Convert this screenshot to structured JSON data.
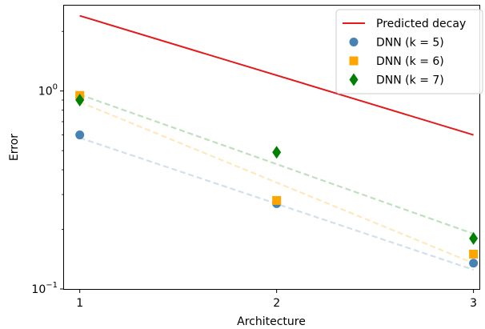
{
  "chart_data": {
    "type": "scatter",
    "title": "",
    "xlabel": "Architecture",
    "ylabel": "Error",
    "xscale": "linear",
    "yscale": "log",
    "xlim": [
      0.92,
      3.03
    ],
    "ylim": [
      0.1,
      2.7
    ],
    "grid": false,
    "legend_position": "top-right",
    "x_ticks": [
      {
        "value": 1,
        "label": "1"
      },
      {
        "value": 2,
        "label": "2"
      },
      {
        "value": 3,
        "label": "3"
      }
    ],
    "y_ticks": [
      {
        "value": 0.1,
        "base": "10",
        "exp": "−1"
      },
      {
        "value": 1,
        "base": "10",
        "exp": "0"
      }
    ],
    "series": [
      {
        "name": "Predicted decay",
        "kind": "line",
        "color": "#e31a1c",
        "x": [
          1,
          3
        ],
        "y": [
          2.4,
          0.6
        ]
      },
      {
        "name": "DNN (k = 5)",
        "kind": "marker",
        "marker": "circle",
        "color": "#4682b4",
        "x": [
          1,
          2,
          3
        ],
        "y": [
          0.6,
          0.27,
          0.135
        ],
        "fit": {
          "x": [
            1,
            3
          ],
          "y": [
            0.58,
            0.125
          ]
        }
      },
      {
        "name": "DNN (k = 6)",
        "kind": "marker",
        "marker": "square",
        "color": "#ffa500",
        "x": [
          1,
          2,
          3
        ],
        "y": [
          0.95,
          0.28,
          0.15
        ],
        "fit": {
          "x": [
            1,
            3
          ],
          "y": [
            0.88,
            0.135
          ]
        }
      },
      {
        "name": "DNN (k = 7)",
        "kind": "marker",
        "marker": "diamond",
        "color": "#008000",
        "x": [
          1,
          2,
          3
        ],
        "y": [
          0.9,
          0.49,
          0.18
        ],
        "fit": {
          "x": [
            1,
            3
          ],
          "y": [
            0.96,
            0.19
          ]
        }
      }
    ]
  }
}
